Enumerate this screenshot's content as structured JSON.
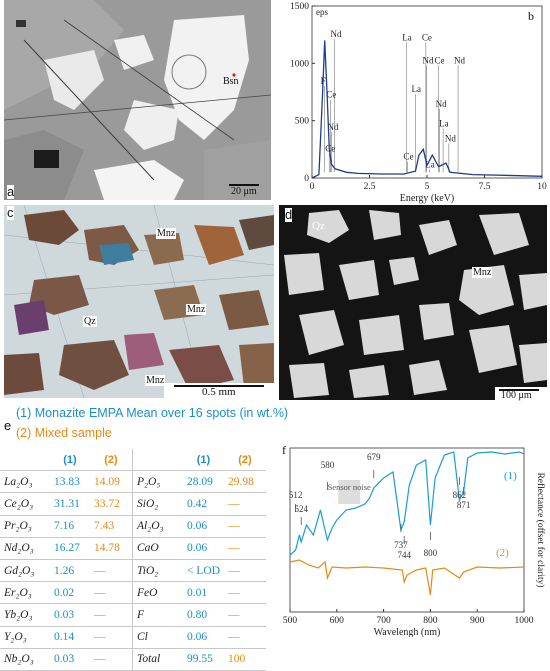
{
  "panels": {
    "a": {
      "tag": "a",
      "label_bsn": "Bsn",
      "scale": "20 μm"
    },
    "b": {
      "tag": "b"
    },
    "c": {
      "tag": "c",
      "labels": [
        "Mnz",
        "Mnz",
        "Qz",
        "Mnz"
      ],
      "scale": "0.5 mm"
    },
    "d": {
      "tag": "d",
      "labels": [
        "Qz",
        "Mnz"
      ],
      "scale": "100 μm"
    },
    "e": {
      "tag": "e",
      "legend1": "(1)  Monazite  EMPA   Mean over 16 spots (in wt.%)",
      "legend2": "(2)  Mixed sample",
      "col_h1": "(1)",
      "col_h2": "(2)",
      "left_rows": [
        {
          "ox": "La₂O₃",
          "v1": "13.83",
          "v2": "14.09"
        },
        {
          "ox": "Ce₂O₃",
          "v1": "31.31",
          "v2": "33.72"
        },
        {
          "ox": "Pr₂O₃",
          "v1": "7.16",
          "v2": "7.43"
        },
        {
          "ox": "Nd₂O₃",
          "v1": "16.27",
          "v2": "14.78"
        },
        {
          "ox": "Gd₂O₃",
          "v1": "1.26",
          "v2": "—"
        },
        {
          "ox": "Er₂O₃",
          "v1": "0.02",
          "v2": "—"
        },
        {
          "ox": "Yb₂O₃",
          "v1": "0.03",
          "v2": "—"
        },
        {
          "ox": "Y₂O₃",
          "v1": "0.14",
          "v2": "—"
        },
        {
          "ox": "Nb₂O₃",
          "v1": "0.03",
          "v2": "—"
        }
      ],
      "right_rows": [
        {
          "ox": "P₂O₅",
          "v1": "28.09",
          "v2": "29.98"
        },
        {
          "ox": "SiO₂",
          "v1": "0.42",
          "v2": "—"
        },
        {
          "ox": "Al₂O₃",
          "v1": "0.06",
          "v2": "—"
        },
        {
          "ox": "CaO",
          "v1": "0.06",
          "v2": "—"
        },
        {
          "ox": "TiO₂",
          "v1": "< LOD",
          "v2": "—"
        },
        {
          "ox": "FeO",
          "v1": "0.01",
          "v2": "—"
        },
        {
          "ox": "F",
          "v1": "0.80",
          "v2": "—"
        },
        {
          "ox": "Cl",
          "v1": "0.06",
          "v2": "—"
        },
        {
          "ox": "Total",
          "v1": "99.55",
          "v2": "100"
        }
      ]
    },
    "f": {
      "tag": "f"
    }
  },
  "chart_data": [
    {
      "type": "line",
      "panel": "b",
      "xlabel": "Energy (keV)",
      "ylabel": "",
      "xlim": [
        0,
        10
      ],
      "ylim": [
        0,
        1500
      ],
      "xticks": [
        "0",
        "2.5",
        "5",
        "7.5",
        "10"
      ],
      "yticks": [
        "0",
        "500",
        "1000",
        "1500"
      ],
      "unit_label": "eps",
      "series": [
        {
          "x": [
            0,
            0.3,
            0.45,
            0.55,
            0.65,
            0.75,
            0.85,
            1.0,
            1.5,
            2.0,
            3.0,
            4.0,
            4.5,
            4.65,
            4.84,
            5.0,
            5.23,
            5.5,
            5.83,
            6.0,
            7.0,
            8.0,
            9.0,
            10
          ],
          "y": [
            0,
            30,
            700,
            1200,
            750,
            250,
            120,
            80,
            50,
            40,
            35,
            35,
            60,
            200,
            250,
            110,
            200,
            100,
            130,
            50,
            30,
            25,
            20,
            15
          ]
        }
      ],
      "peak_labels": [
        {
          "text": "Nd",
          "x": 0.98,
          "y": 1230
        },
        {
          "text": "F",
          "x": 0.55,
          "y": 820
        },
        {
          "text": "Ce",
          "x": 0.8,
          "y": 700
        },
        {
          "text": "Nd",
          "x": 0.85,
          "y": 420
        },
        {
          "text": "Ce",
          "x": 0.75,
          "y": 230
        },
        {
          "text": "La",
          "x": 4.1,
          "y": 1200
        },
        {
          "text": "Ce",
          "x": 4.95,
          "y": 1200
        },
        {
          "text": "Nd",
          "x": 4.98,
          "y": 1000
        },
        {
          "text": "La",
          "x": 4.5,
          "y": 750
        },
        {
          "text": "Ce",
          "x": 5.5,
          "y": 1000
        },
        {
          "text": "Nd",
          "x": 6.35,
          "y": 1000
        },
        {
          "text": "Nd",
          "x": 5.55,
          "y": 620
        },
        {
          "text": "La",
          "x": 5.7,
          "y": 450
        },
        {
          "text": "Nd",
          "x": 5.95,
          "y": 320
        },
        {
          "text": "Ce",
          "x": 4.15,
          "y": 160
        },
        {
          "text": "La",
          "x": 5.1,
          "y": 90
        }
      ]
    },
    {
      "type": "line",
      "panel": "f",
      "xlabel": "Wavelengh (nm)",
      "ylabel": "Reflectance (offset for clarity)",
      "xlim": [
        500,
        1000
      ],
      "xticks": [
        "500",
        "600",
        "700",
        "800",
        "900",
        "1000"
      ],
      "series": [
        {
          "name": "(1)",
          "color": "#1a9bd7"
        },
        {
          "name": "(2)",
          "color": "#e38b12"
        }
      ],
      "annotations": [
        "512",
        "524",
        "580",
        "679",
        "737",
        "744",
        "800",
        "862",
        "871"
      ],
      "sensor_note": "Sensor noise"
    }
  ],
  "colors": {
    "blue": "#1a9bd7",
    "orange": "#e38b12",
    "eds": "#1f3b8f"
  }
}
